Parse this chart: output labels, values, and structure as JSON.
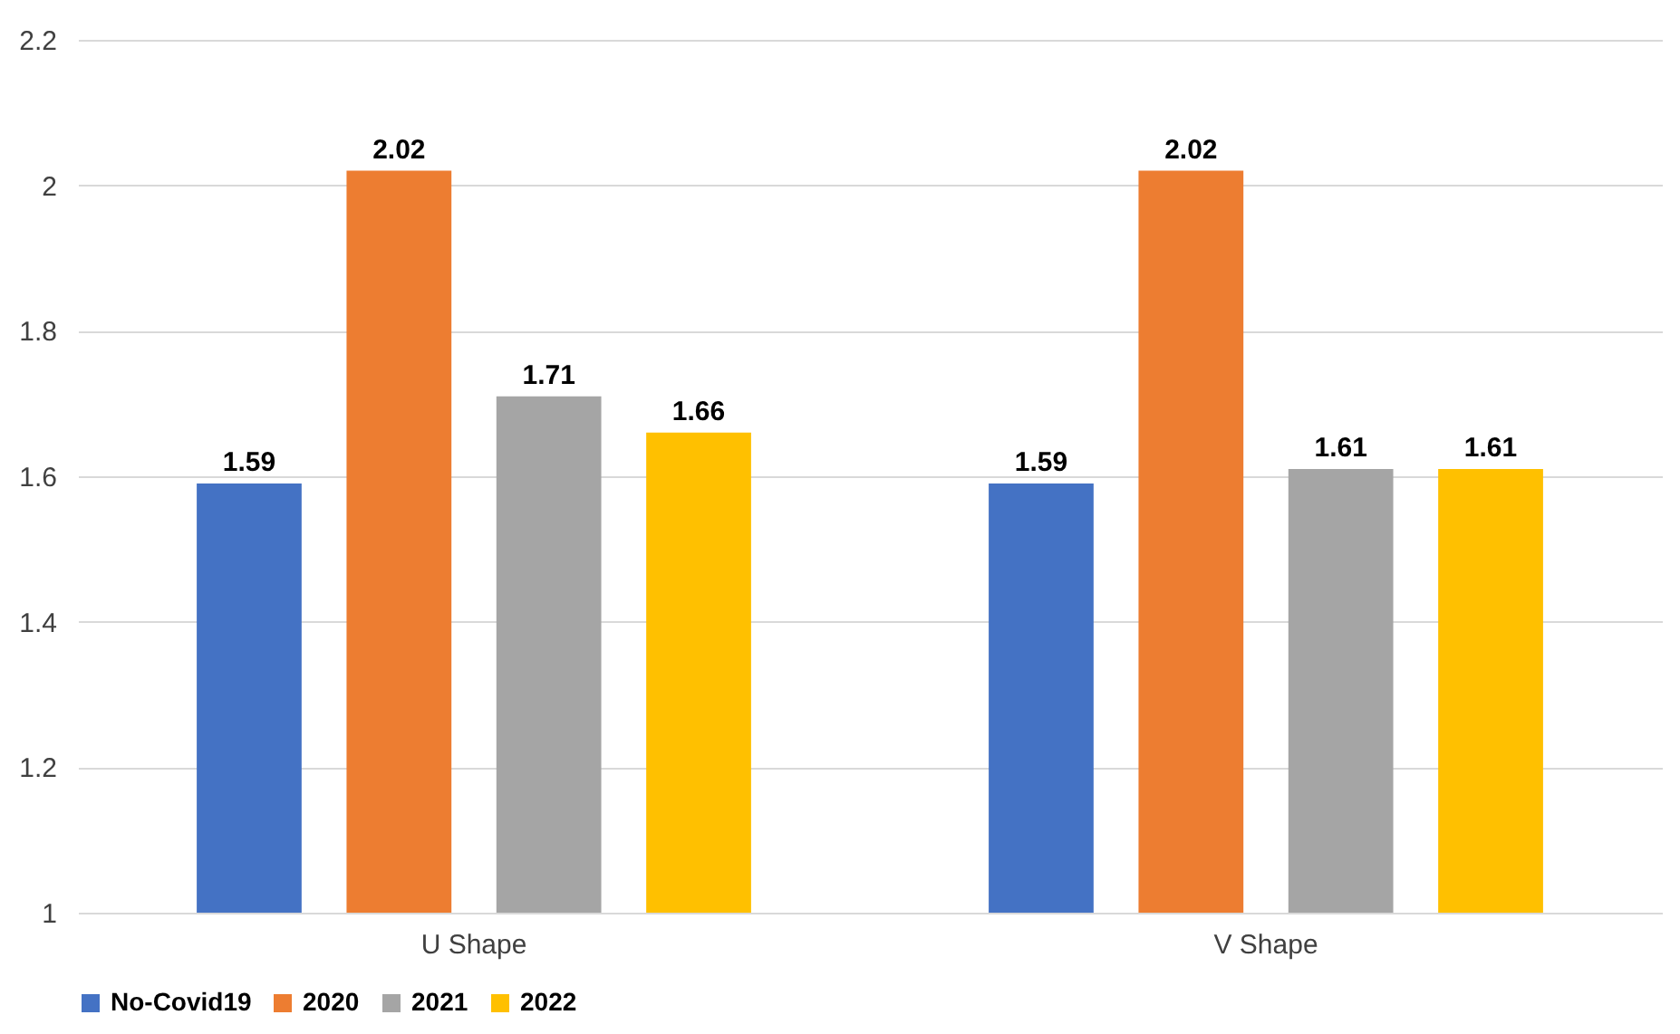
{
  "chart_data": {
    "type": "bar",
    "categories": [
      "U Shape",
      "V Shape"
    ],
    "series": [
      {
        "name": "No-Covid19",
        "color": "#4472c4",
        "values": [
          1.59,
          1.59
        ]
      },
      {
        "name": "2020",
        "color": "#ed7d31",
        "values": [
          2.02,
          2.02
        ]
      },
      {
        "name": "2021",
        "color": "#a5a5a5",
        "values": [
          1.71,
          1.61
        ]
      },
      {
        "name": "2022",
        "color": "#ffc000",
        "values": [
          1.66,
          1.61
        ]
      }
    ],
    "ylim": [
      1,
      2.2
    ],
    "yticks": [
      1,
      1.2,
      1.4,
      1.6,
      1.8,
      2,
      2.2
    ],
    "grid": "y",
    "legend": "bottom",
    "data_labels": true
  }
}
